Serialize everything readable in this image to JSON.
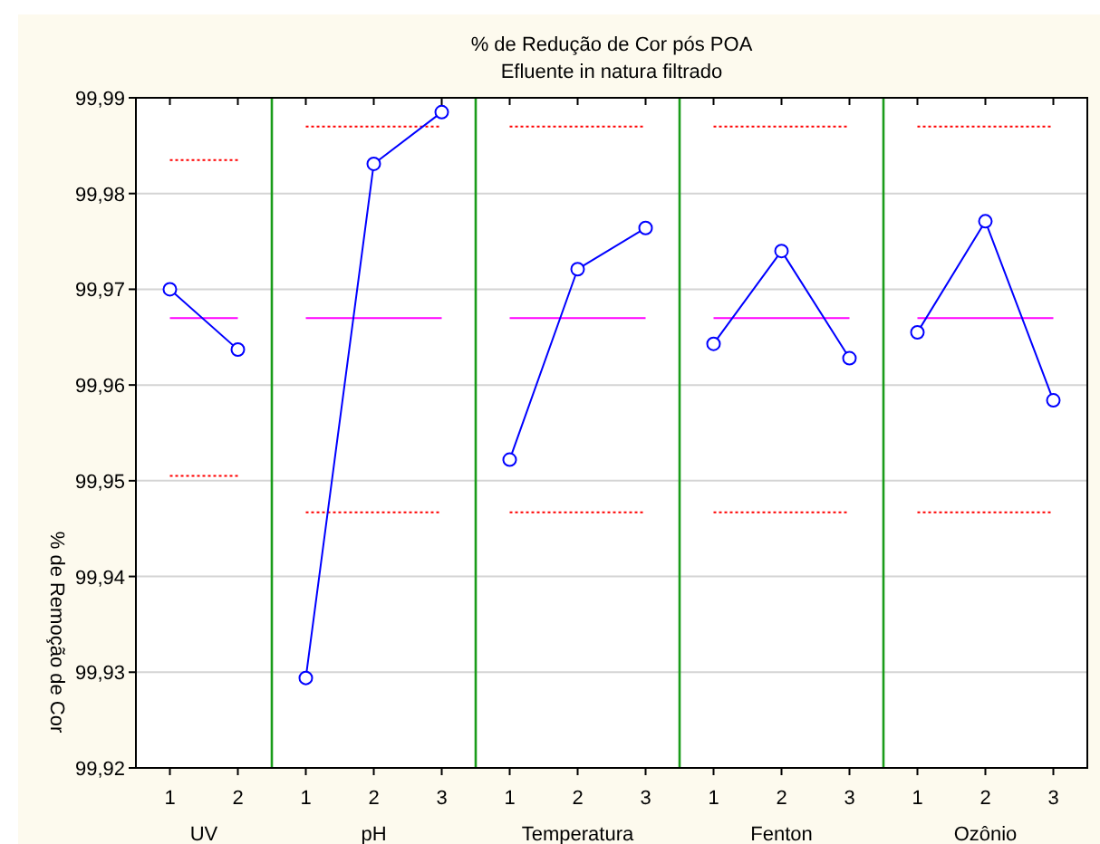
{
  "chart_data": [
    {
      "type": "line",
      "ylabel": "% de Remoção de Cor",
      "xlabel": "UV",
      "categories": [
        "1",
        "2"
      ],
      "series": [
        {
          "color": "#0000ff",
          "values": [
            99.97,
            99.9637
          ]
        }
      ],
      "marker": "circle",
      "grid": "y",
      "ylim": [
        99.92,
        99.99
      ],
      "yticks": [
        {
          "value": 99.92,
          "label": "99,92"
        },
        {
          "value": 99.93,
          "label": "99,93"
        },
        {
          "value": 99.94,
          "label": "99,94"
        },
        {
          "value": 99.95,
          "label": "99,95"
        },
        {
          "value": 99.96,
          "label": "99,96"
        },
        {
          "value": 99.97,
          "label": "99,97"
        },
        {
          "value": 99.98,
          "label": "99,98"
        },
        {
          "value": 99.99,
          "label": "99,99"
        }
      ],
      "ref_lines": [
        {
          "axis": "y",
          "value": 99.967,
          "color": "#ff00ff",
          "line_style": "solid"
        },
        {
          "axis": "y",
          "value": 99.9835,
          "color": "#ff0000",
          "line_style": "dotted"
        },
        {
          "axis": "y",
          "value": 99.9505,
          "color": "#ff0000",
          "line_style": "dotted"
        }
      ]
    },
    {
      "type": "line",
      "xlabel": "pH",
      "categories": [
        "1",
        "2",
        "3"
      ],
      "series": [
        {
          "color": "#0000ff",
          "values": [
            99.9294,
            99.9831,
            99.9885
          ]
        }
      ],
      "marker": "circle",
      "grid": "y",
      "ylim": [
        99.92,
        99.99
      ],
      "tick_labels": "x",
      "ref_lines": [
        {
          "axis": "y",
          "value": 99.967,
          "color": "#ff00ff",
          "line_style": "solid"
        },
        {
          "axis": "y",
          "value": 99.987,
          "color": "#ff0000",
          "line_style": "dotted"
        },
        {
          "axis": "y",
          "value": 99.9467,
          "color": "#ff0000",
          "line_style": "dotted"
        }
      ]
    },
    {
      "type": "line",
      "title": "% de Redução de Cor pós POA",
      "subtitle": "Efluente in natura filtrado",
      "xlabel": "Temperatura",
      "categories": [
        "1",
        "2",
        "3"
      ],
      "series": [
        {
          "color": "#0000ff",
          "values": [
            99.9522,
            99.9721,
            99.9764
          ]
        }
      ],
      "marker": "circle",
      "grid": "y",
      "ylim": [
        99.92,
        99.99
      ],
      "tick_labels": "x",
      "ref_lines": [
        {
          "axis": "y",
          "value": 99.967,
          "color": "#ff00ff",
          "line_style": "solid"
        },
        {
          "axis": "y",
          "value": 99.987,
          "color": "#ff0000",
          "line_style": "dotted"
        },
        {
          "axis": "y",
          "value": 99.9467,
          "color": "#ff0000",
          "line_style": "dotted"
        }
      ]
    },
    {
      "type": "line",
      "xlabel": "Fenton",
      "categories": [
        "1",
        "2",
        "3"
      ],
      "series": [
        {
          "color": "#0000ff",
          "values": [
            99.9643,
            99.974,
            99.9628
          ]
        }
      ],
      "marker": "circle",
      "grid": "y",
      "ylim": [
        99.92,
        99.99
      ],
      "tick_labels": "x",
      "ref_lines": [
        {
          "axis": "y",
          "value": 99.967,
          "color": "#ff00ff",
          "line_style": "solid"
        },
        {
          "axis": "y",
          "value": 99.987,
          "color": "#ff0000",
          "line_style": "dotted"
        },
        {
          "axis": "y",
          "value": 99.9467,
          "color": "#ff0000",
          "line_style": "dotted"
        }
      ]
    },
    {
      "type": "line",
      "xlabel": "Ozônio",
      "categories": [
        "1",
        "2",
        "3"
      ],
      "series": [
        {
          "color": "#0000ff",
          "values": [
            99.9655,
            99.9771,
            99.9584
          ]
        }
      ],
      "marker": "circle",
      "grid": "y",
      "ylim": [
        99.92,
        99.99
      ],
      "tick_labels": "x",
      "ref_lines": [
        {
          "axis": "y",
          "value": 99.967,
          "color": "#ff00ff",
          "line_style": "solid"
        },
        {
          "axis": "y",
          "value": 99.987,
          "color": "#ff0000",
          "line_style": "dotted"
        },
        {
          "axis": "y",
          "value": 99.9467,
          "color": "#ff0000",
          "line_style": "dotted"
        }
      ]
    }
  ]
}
